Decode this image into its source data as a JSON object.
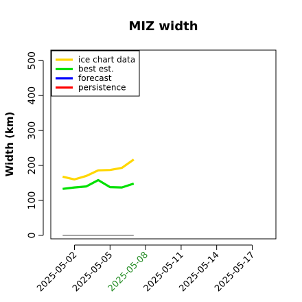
{
  "chart_data": {
    "type": "line",
    "title": "MIZ width",
    "xlabel": "",
    "ylabel": "Width (km)",
    "ylim": [
      -10,
      530
    ],
    "xlim": [
      "2025-04-30",
      "2025-05-19"
    ],
    "yticks": [
      0,
      100,
      200,
      300,
      400,
      500
    ],
    "xticks": [
      {
        "date": "2025-05-02",
        "label": "2025-05-02",
        "color": "#000000"
      },
      {
        "date": "2025-05-05",
        "label": "2025-05-05",
        "color": "#000000"
      },
      {
        "date": "2025-05-08",
        "label": "2025-05-08",
        "color": "#228B22"
      },
      {
        "date": "2025-05-11",
        "label": "2025-05-11",
        "color": "#000000"
      },
      {
        "date": "2025-05-14",
        "label": "2025-05-14",
        "color": "#000000"
      },
      {
        "date": "2025-05-17",
        "label": "2025-05-17",
        "color": "#000000"
      }
    ],
    "legend_position": "top-left",
    "grid": false,
    "series": [
      {
        "name": "ice chart data",
        "color": "#FFD700",
        "x": [
          "2025-05-01",
          "2025-05-02",
          "2025-05-03",
          "2025-05-04",
          "2025-05-05",
          "2025-05-06",
          "2025-05-07"
        ],
        "values": [
          168,
          160,
          170,
          186,
          187,
          193,
          217
        ]
      },
      {
        "name": "best est.",
        "color": "#00E000",
        "x": [
          "2025-05-01",
          "2025-05-02",
          "2025-05-03",
          "2025-05-04",
          "2025-05-05",
          "2025-05-06",
          "2025-05-07"
        ],
        "values": [
          133,
          137,
          140,
          158,
          138,
          137,
          148
        ]
      },
      {
        "name": "forecast",
        "color": "#0000FF",
        "x": [],
        "values": []
      },
      {
        "name": "persistence",
        "color": "#FF0000",
        "x": [],
        "values": []
      },
      {
        "name": "",
        "color": "#808080",
        "legend": false,
        "x": [
          "2025-05-01",
          "2025-05-07"
        ],
        "values": [
          0,
          0
        ]
      }
    ]
  }
}
